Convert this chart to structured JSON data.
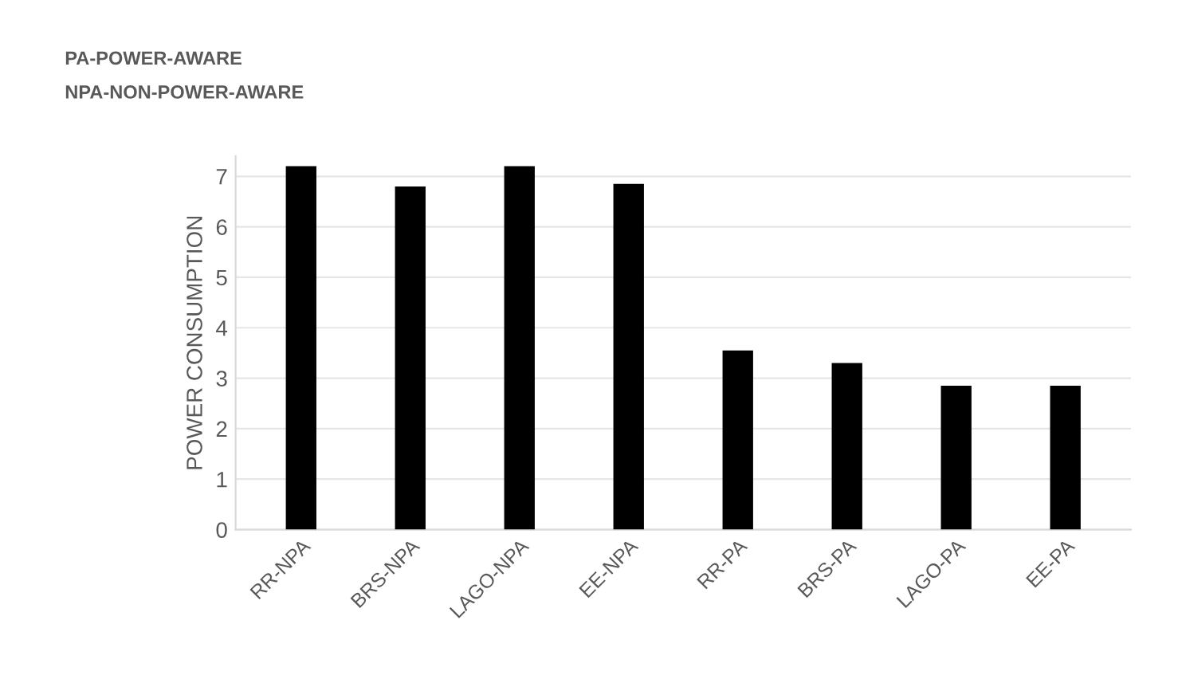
{
  "chart_data": {
    "type": "bar",
    "annotations": [
      "PA-POWER-AWARE",
      "NPA-NON-POWER-AWARE"
    ],
    "ylabel": "POWER CONSUMPTION",
    "categories": [
      "RR-NPA",
      "BRS-NPA",
      "LAGO-NPA",
      "EE-NPA",
      "RR-PA",
      "BRS-PA",
      "LAGO-PA",
      "EE-PA"
    ],
    "values": [
      7.2,
      6.8,
      7.2,
      6.85,
      3.55,
      3.3,
      2.85,
      2.85
    ],
    "color": "#000000",
    "ylim": [
      0,
      7.4
    ],
    "yticks": [
      0,
      1,
      2,
      3,
      4,
      5,
      6,
      7
    ],
    "grid": "y"
  }
}
